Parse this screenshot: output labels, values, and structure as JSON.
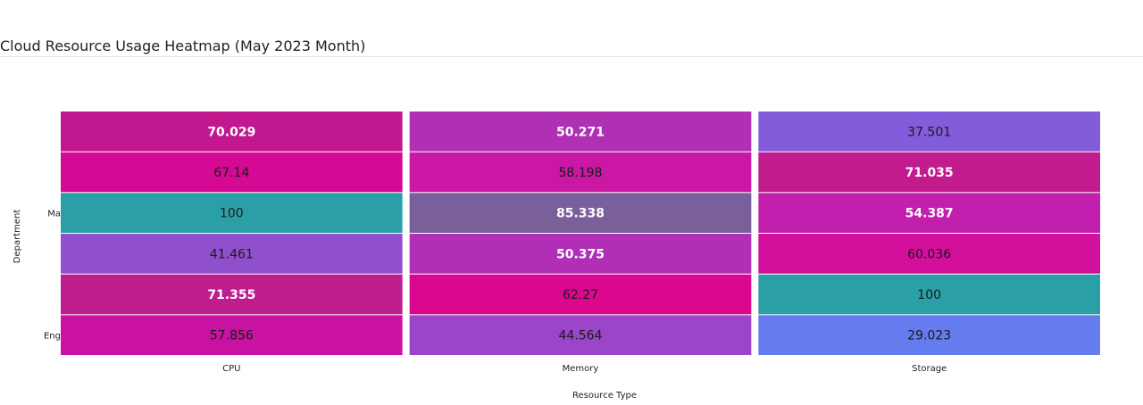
{
  "chart_data": {
    "type": "heatmap",
    "title": "Cloud Resource Usage Heatmap (May 2023 Month)",
    "xlabel": "Resource Type",
    "ylabel": "Department",
    "x_categories": [
      "CPU",
      "Memory",
      "Storage"
    ],
    "y_categories": [
      "",
      "",
      "Ma",
      "",
      "",
      "Eng"
    ],
    "values": [
      [
        70.029,
        50.271,
        37.501
      ],
      [
        67.14,
        58.198,
        71.035
      ],
      [
        100,
        85.338,
        54.387
      ],
      [
        41.461,
        50.375,
        60.036
      ],
      [
        71.355,
        62.27,
        100
      ],
      [
        57.856,
        44.564,
        29.023
      ]
    ],
    "cell_colors": [
      [
        "#c2188f",
        "#b030b4",
        "#825cda"
      ],
      [
        "#d40994",
        "#ca17a4",
        "#c11b8d"
      ],
      [
        "#2aa0a6",
        "#79609a",
        "#c21fae"
      ],
      [
        "#9050cc",
        "#b12fb6",
        "#d2109c"
      ],
      [
        "#bf1d8e",
        "#dc078f",
        "#2aa0a6"
      ],
      [
        "#c912a2",
        "#9b46c8",
        "#657cef"
      ]
    ],
    "bold_cells": [
      [
        true,
        true,
        false
      ],
      [
        false,
        false,
        true
      ],
      [
        false,
        true,
        true
      ],
      [
        false,
        true,
        false
      ],
      [
        true,
        false,
        false
      ],
      [
        false,
        false,
        false
      ]
    ]
  }
}
